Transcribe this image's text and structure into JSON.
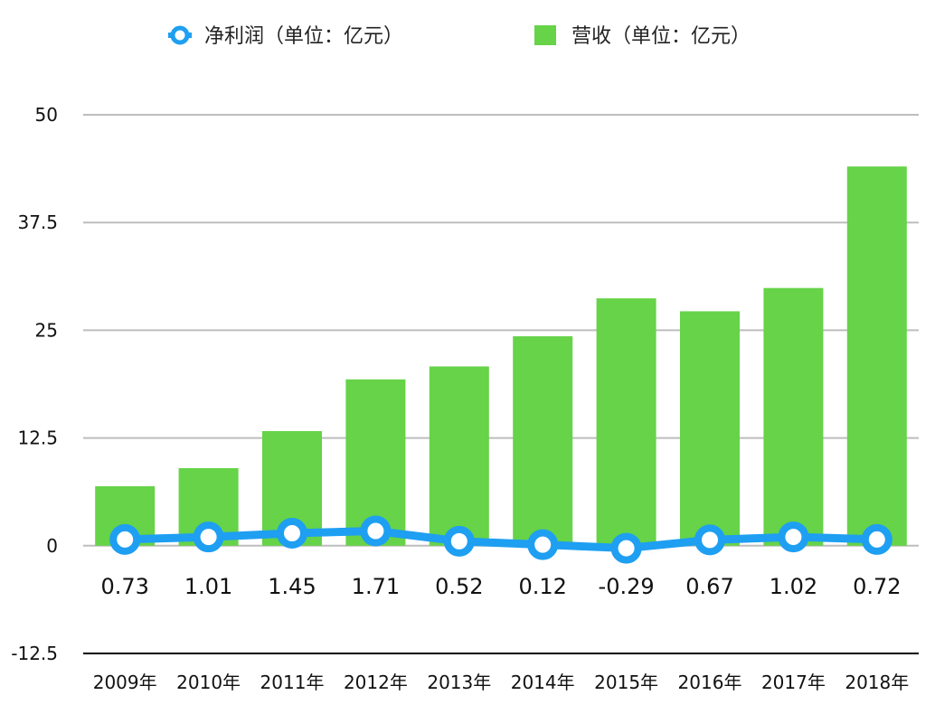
{
  "chart_data": {
    "type": "bar",
    "categories": [
      "2009年",
      "2010年",
      "2011年",
      "2012年",
      "2013年",
      "2014年",
      "2015年",
      "2016年",
      "2017年",
      "2018年"
    ],
    "series": [
      {
        "name": "营收（单位：亿元）",
        "type": "bar",
        "color": "#66d348",
        "values": [
          6.9,
          9.0,
          13.3,
          19.3,
          20.8,
          24.3,
          28.7,
          27.2,
          29.9,
          44.0
        ]
      },
      {
        "name": "净利润（单位：亿元）",
        "type": "line",
        "color": "#1e9ff2",
        "values": [
          0.73,
          1.01,
          1.45,
          1.71,
          0.52,
          0.12,
          -0.29,
          0.67,
          1.02,
          0.72
        ],
        "data_labels": [
          "0.73",
          "1.01",
          "1.45",
          "1.71",
          "0.52",
          "0.12",
          "-0.29",
          "0.67",
          "1.02",
          "0.72"
        ]
      }
    ],
    "ylim": [
      -12.5,
      50
    ],
    "yticks": [
      "-12.5",
      "0",
      "12.5",
      "25",
      "37.5",
      "50"
    ],
    "grid": true,
    "legend_position": "top"
  }
}
